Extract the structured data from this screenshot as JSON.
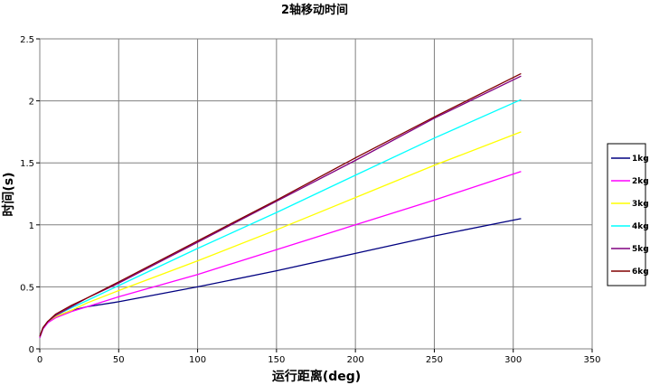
{
  "chart_data": {
    "type": "line",
    "title": "2轴移动时间",
    "xlabel": "运行距离(deg)",
    "ylabel": "时间(s)",
    "xlim": [
      0,
      350
    ],
    "ylim": [
      0,
      2.5
    ],
    "x_ticks": [
      "0",
      "50",
      "100",
      "150",
      "200",
      "250",
      "300",
      "350"
    ],
    "y_ticks": [
      "0",
      "0.5",
      "1",
      "1.5",
      "2",
      "2.5"
    ],
    "grid": true,
    "legend_position": "right",
    "series": [
      {
        "name": "1kg",
        "color": "#000080",
        "x": [
          0,
          2,
          5,
          10,
          20,
          30,
          50,
          100,
          150,
          200,
          250,
          305
        ],
        "y": [
          0.09,
          0.16,
          0.21,
          0.26,
          0.31,
          0.34,
          0.38,
          0.5,
          0.63,
          0.77,
          0.91,
          1.05
        ]
      },
      {
        "name": "2kg",
        "color": "#FF00FF",
        "x": [
          0,
          2,
          5,
          10,
          20,
          30,
          50,
          100,
          150,
          200,
          250,
          305
        ],
        "y": [
          0.09,
          0.16,
          0.21,
          0.25,
          0.3,
          0.34,
          0.42,
          0.6,
          0.8,
          1.0,
          1.2,
          1.43
        ]
      },
      {
        "name": "3kg",
        "color": "#FFFF00",
        "x": [
          0,
          2,
          5,
          10,
          20,
          30,
          50,
          100,
          150,
          200,
          250,
          305
        ],
        "y": [
          0.1,
          0.17,
          0.22,
          0.26,
          0.31,
          0.37,
          0.47,
          0.71,
          0.96,
          1.22,
          1.48,
          1.75
        ]
      },
      {
        "name": "4kg",
        "color": "#00FFFF",
        "x": [
          0,
          2,
          5,
          10,
          20,
          30,
          50,
          100,
          150,
          200,
          250,
          305
        ],
        "y": [
          0.1,
          0.17,
          0.22,
          0.27,
          0.33,
          0.39,
          0.51,
          0.81,
          1.1,
          1.4,
          1.7,
          2.01
        ]
      },
      {
        "name": "5kg",
        "color": "#800080",
        "x": [
          0,
          2,
          5,
          10,
          20,
          30,
          50,
          100,
          150,
          200,
          250,
          305
        ],
        "y": [
          0.1,
          0.17,
          0.22,
          0.27,
          0.34,
          0.41,
          0.53,
          0.86,
          1.19,
          1.52,
          1.86,
          2.2
        ]
      },
      {
        "name": "6kg",
        "color": "#800000",
        "x": [
          0,
          2,
          5,
          10,
          20,
          30,
          50,
          100,
          150,
          200,
          250,
          305
        ],
        "y": [
          0.1,
          0.17,
          0.22,
          0.28,
          0.35,
          0.41,
          0.54,
          0.87,
          1.2,
          1.54,
          1.87,
          2.22
        ]
      }
    ]
  }
}
